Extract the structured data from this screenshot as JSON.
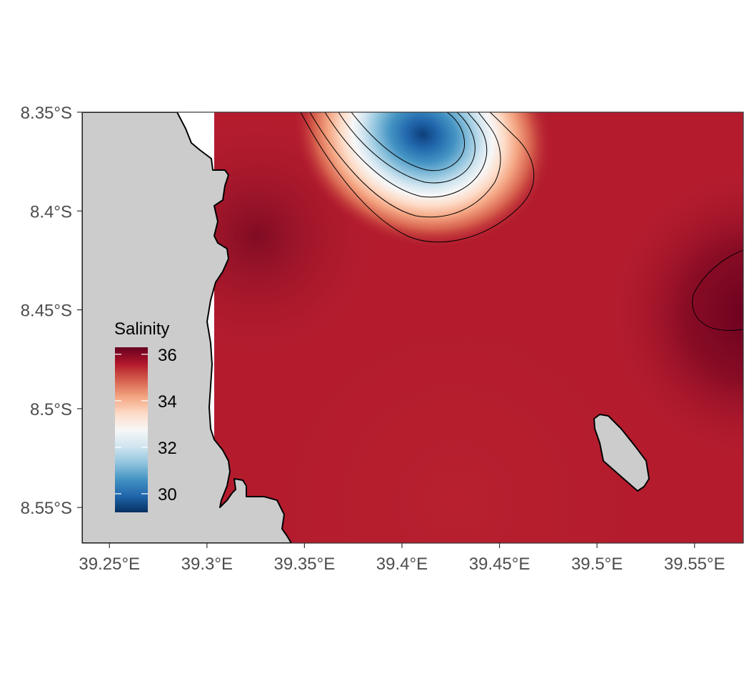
{
  "chart_data": {
    "type": "heatmap",
    "title": "",
    "xlabel": "",
    "ylabel": "",
    "x_ticks": [
      {
        "value": 39.25,
        "label": "39.25°E"
      },
      {
        "value": 39.3,
        "label": "39.3°E"
      },
      {
        "value": 39.35,
        "label": "39.35°E"
      },
      {
        "value": 39.4,
        "label": "39.4°E"
      },
      {
        "value": 39.45,
        "label": "39.45°E"
      },
      {
        "value": 39.5,
        "label": "39.5°E"
      },
      {
        "value": 39.55,
        "label": "39.55°E"
      }
    ],
    "y_ticks": [
      {
        "value": -8.35,
        "label": "8.35°S"
      },
      {
        "value": -8.4,
        "label": "8.4°S"
      },
      {
        "value": -8.45,
        "label": "8.45°S"
      },
      {
        "value": -8.5,
        "label": "8.5°S"
      },
      {
        "value": -8.55,
        "label": "8.55°S"
      }
    ],
    "xlim": [
      39.236,
      39.575
    ],
    "ylim": [
      -8.568,
      -8.35
    ],
    "grid": false,
    "legend": {
      "title": "Salinity",
      "position": "inside-left",
      "range": [
        29.2,
        36.3
      ],
      "ticks": [
        {
          "value": 30,
          "label": "30"
        },
        {
          "value": 32,
          "label": "32"
        },
        {
          "value": 34,
          "label": "34"
        },
        {
          "value": 36,
          "label": "36"
        }
      ],
      "palette": [
        "#053061",
        "#2166ac",
        "#4393c3",
        "#92c5de",
        "#d1e5f0",
        "#f7f7f7",
        "#fddbc7",
        "#f4a582",
        "#d6604d",
        "#b2182b",
        "#67001f"
      ]
    },
    "field": {
      "background_salinity": 35.2,
      "low_salinity_minimum": 29.3,
      "low_salinity_center": {
        "lon": 39.41,
        "lat": -8.357
      },
      "high_salinity_center": {
        "lon": 39.575,
        "lat": -8.44
      },
      "contour_levels": [
        30,
        31,
        32,
        33,
        34,
        36
      ]
    },
    "land_color": "#cccccc",
    "land_features": [
      "mainland-coast",
      "offshore-island"
    ]
  }
}
